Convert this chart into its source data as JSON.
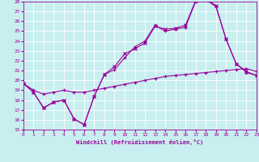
{
  "xlabel": "Windchill (Refroidissement éolien,°C)",
  "bg_color": "#c8eef0",
  "line_color": "#990099",
  "grid_color": "#ffffff",
  "xlim": [
    0,
    23
  ],
  "ylim": [
    15,
    28
  ],
  "yticks": [
    15,
    16,
    17,
    18,
    19,
    20,
    21,
    22,
    23,
    24,
    25,
    26,
    27,
    28
  ],
  "xticks": [
    0,
    1,
    2,
    3,
    4,
    5,
    6,
    7,
    8,
    9,
    10,
    11,
    12,
    13,
    14,
    15,
    16,
    17,
    18,
    19,
    20,
    21,
    22,
    23
  ],
  "series1_x": [
    0,
    1,
    2,
    3,
    4,
    5,
    6,
    7,
    8,
    9,
    10,
    11,
    12,
    13,
    14,
    15,
    16,
    17,
    18,
    19,
    20,
    21,
    22,
    23
  ],
  "series1_y": [
    19.7,
    18.8,
    17.2,
    17.8,
    18.0,
    16.1,
    15.5,
    18.4,
    20.6,
    21.1,
    22.3,
    23.4,
    24.0,
    25.6,
    25.0,
    25.2,
    25.4,
    28.0,
    28.2,
    27.5,
    24.2,
    21.7,
    20.8,
    20.5
  ],
  "series2_x": [
    0,
    1,
    2,
    3,
    4,
    5,
    6,
    7,
    8,
    9,
    10,
    11,
    12,
    13,
    14,
    15,
    16,
    17,
    18,
    19,
    20,
    21,
    22,
    23
  ],
  "series2_y": [
    19.7,
    18.8,
    17.2,
    17.8,
    18.0,
    16.1,
    15.5,
    18.4,
    20.6,
    21.4,
    22.7,
    23.2,
    23.8,
    25.5,
    25.2,
    25.3,
    25.6,
    28.1,
    28.3,
    27.6,
    24.2,
    21.7,
    20.9,
    20.5
  ],
  "series3_x": [
    0,
    1,
    2,
    3,
    4,
    5,
    6,
    7,
    8,
    9,
    10,
    11,
    12,
    13,
    14,
    15,
    16,
    17,
    18,
    19,
    20,
    21,
    22,
    23
  ],
  "series3_y": [
    19.7,
    19.0,
    18.6,
    18.8,
    19.0,
    18.8,
    18.8,
    19.0,
    19.2,
    19.4,
    19.6,
    19.8,
    20.0,
    20.2,
    20.4,
    20.5,
    20.6,
    20.7,
    20.8,
    20.9,
    21.0,
    21.1,
    21.2,
    20.9
  ]
}
